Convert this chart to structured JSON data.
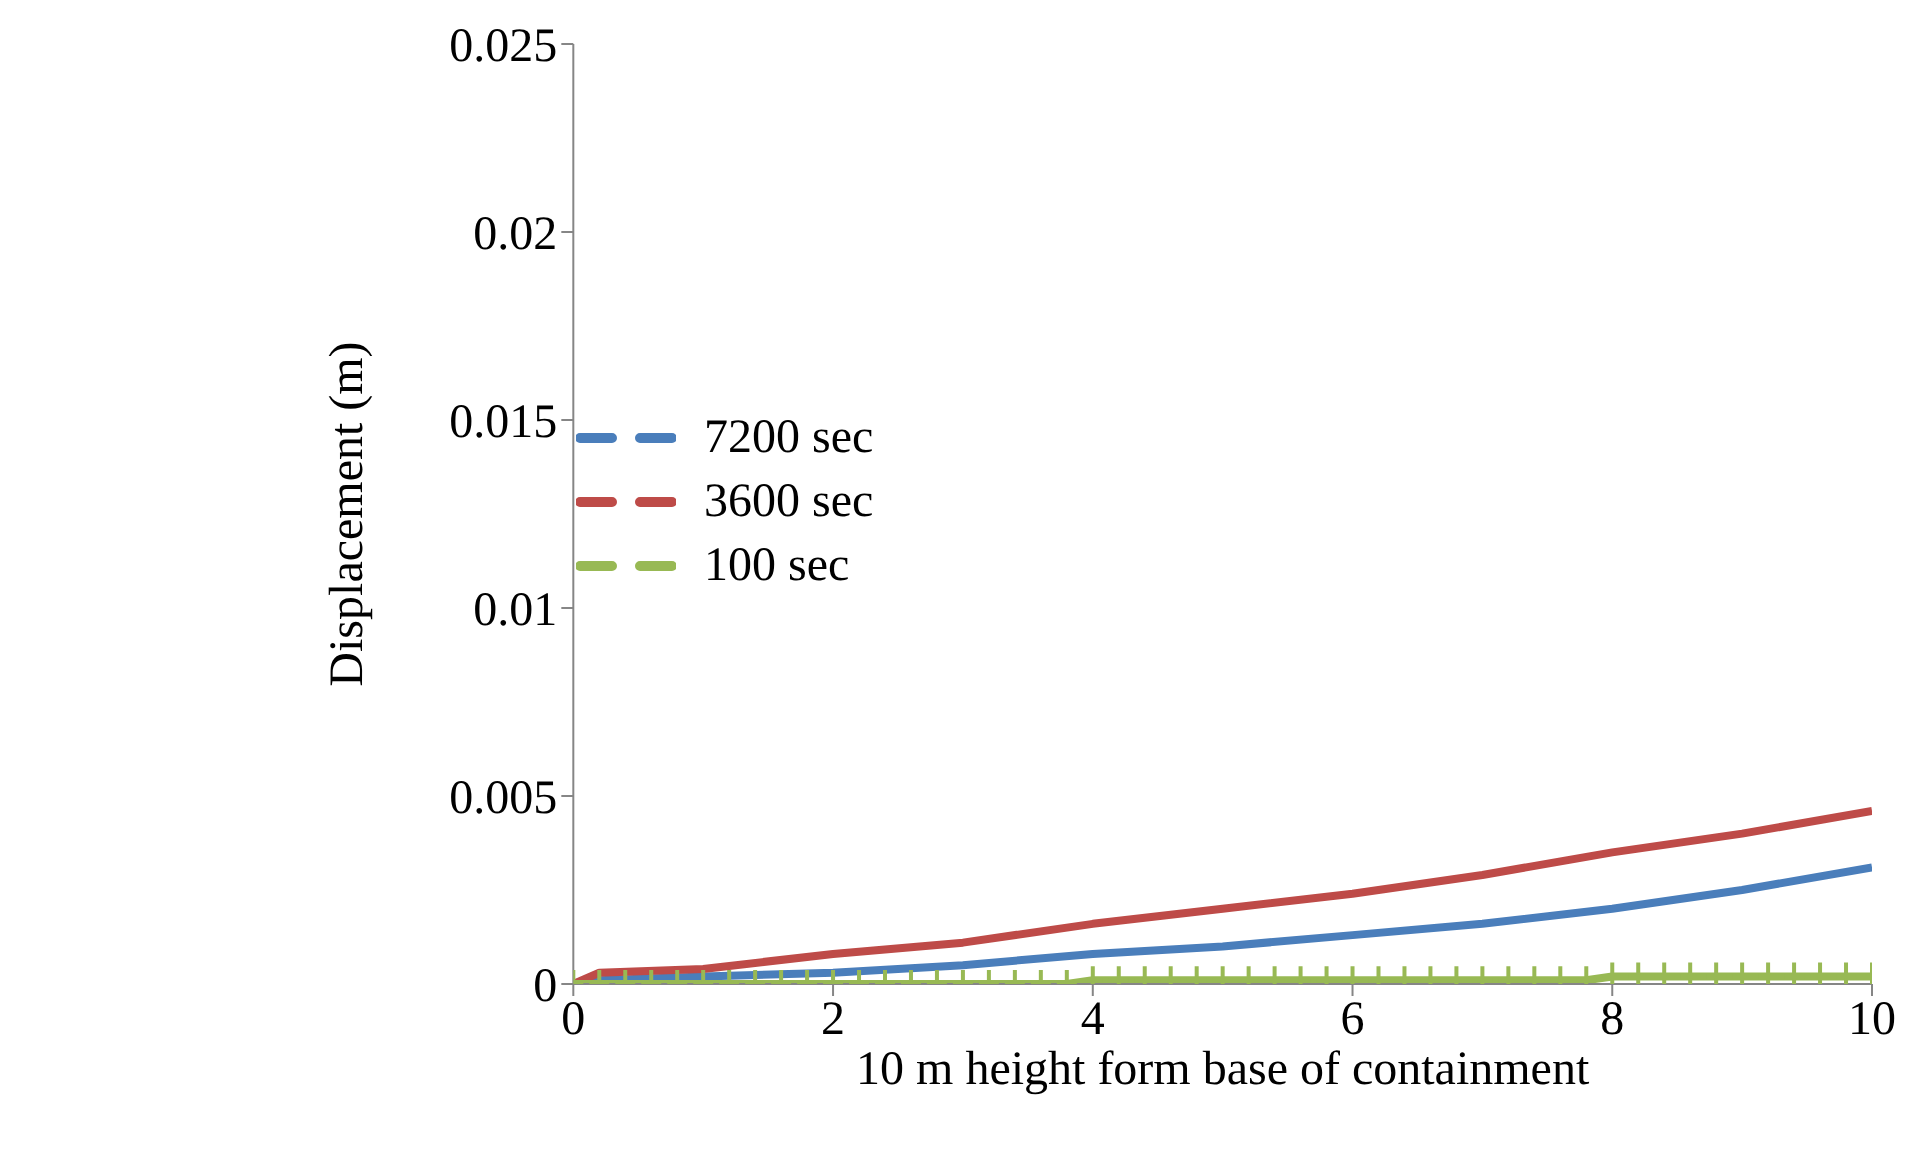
{
  "chart_data": {
    "type": "line",
    "xlabel": "10 m height form base of containment",
    "ylabel": "Displacement (m)",
    "xlim": [
      0,
      10
    ],
    "xticks": [
      0,
      2,
      4,
      6,
      8,
      10
    ],
    "ylim": [
      0,
      0.025
    ],
    "yticks": [
      0,
      0.005,
      0.01,
      0.015,
      0.02,
      0.025
    ],
    "grid": false,
    "legend": "left",
    "line_style": "solid",
    "series": [
      {
        "name": "7200 sec",
        "color": "#4a7ebb",
        "marker": "none",
        "x": [
          0,
          0.2,
          1,
          2,
          3,
          4,
          5,
          6,
          7,
          8,
          9,
          10
        ],
        "values": [
          0,
          0.0001,
          0.0002,
          0.0003,
          0.0005,
          0.0008,
          0.001,
          0.0013,
          0.0016,
          0.002,
          0.0025,
          0.0031
        ]
      },
      {
        "name": "3600 sec",
        "color": "#be4b48",
        "marker": "none",
        "x": [
          0,
          0.2,
          1,
          2,
          3,
          4,
          5,
          6,
          7,
          8,
          9,
          10
        ],
        "values": [
          0,
          0.0003,
          0.0004,
          0.0008,
          0.0011,
          0.0016,
          0.002,
          0.0024,
          0.0029,
          0.0035,
          0.004,
          0.0046
        ]
      },
      {
        "name": "100 sec",
        "color": "#98b954",
        "marker": "cross",
        "x": [
          0,
          0.2,
          0.4,
          0.6,
          0.8,
          1,
          1.2,
          1.4,
          1.6,
          1.8,
          2,
          2.2,
          2.4,
          2.6,
          2.8,
          3,
          3.2,
          3.4,
          3.6,
          3.8,
          4,
          4.2,
          4.4,
          4.6,
          4.8,
          5,
          5.2,
          5.4,
          5.6,
          5.8,
          6,
          6.2,
          6.4,
          6.6,
          6.8,
          7,
          7.2,
          7.4,
          7.6,
          7.8,
          8,
          8.2,
          8.4,
          8.6,
          8.8,
          9,
          9.2,
          9.4,
          9.6,
          9.8,
          10
        ],
        "values": [
          0,
          0,
          0,
          0,
          0,
          0,
          0,
          0,
          0,
          0,
          0,
          0,
          0,
          0,
          0,
          0,
          0,
          0,
          0,
          0,
          0.0001,
          0.0001,
          0.0001,
          0.0001,
          0.0001,
          0.0001,
          0.0001,
          0.0001,
          0.0001,
          0.0001,
          0.0001,
          0.0001,
          0.0001,
          0.0001,
          0.0001,
          0.0001,
          0.0001,
          0.0001,
          0.0001,
          0.0001,
          0.0002,
          0.0002,
          0.0002,
          0.0002,
          0.0002,
          0.0002,
          0.0002,
          0.0002,
          0.0002,
          0.0002,
          0.0002
        ]
      }
    ]
  }
}
